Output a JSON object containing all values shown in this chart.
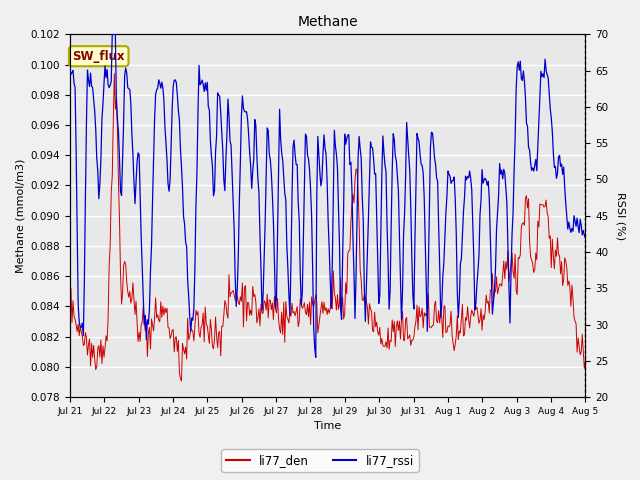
{
  "title": "Methane",
  "xlabel": "Time",
  "ylabel_left": "Methane (mmol/m3)",
  "ylabel_right": "RSSI (%)",
  "ylim_left": [
    0.078,
    0.102
  ],
  "ylim_right": [
    20,
    70
  ],
  "yticks_left": [
    0.078,
    0.08,
    0.082,
    0.084,
    0.086,
    0.088,
    0.09,
    0.092,
    0.094,
    0.096,
    0.098,
    0.1,
    0.102
  ],
  "yticks_right": [
    20,
    25,
    30,
    35,
    40,
    45,
    50,
    55,
    60,
    65,
    70
  ],
  "color_red": "#cc0000",
  "color_blue": "#0000cc",
  "annotation_text": "SW_flux",
  "annotation_facecolor": "#ffffcc",
  "annotation_edgecolor": "#aaaa00",
  "axes_facecolor": "#e8e8e8",
  "fig_facecolor": "#f0f0f0",
  "rssi_control": [
    [
      0.0,
      65
    ],
    [
      0.15,
      63
    ],
    [
      0.25,
      30
    ],
    [
      0.4,
      30
    ],
    [
      0.5,
      65
    ],
    [
      0.7,
      62
    ],
    [
      0.85,
      47
    ],
    [
      1.0,
      65
    ],
    [
      1.1,
      65
    ],
    [
      1.2,
      62
    ],
    [
      1.3,
      99
    ],
    [
      1.35,
      62
    ],
    [
      1.5,
      47
    ],
    [
      1.6,
      65
    ],
    [
      1.75,
      62
    ],
    [
      1.9,
      47
    ],
    [
      2.0,
      55
    ],
    [
      2.15,
      30
    ],
    [
      2.3,
      30
    ],
    [
      2.5,
      63
    ],
    [
      2.7,
      63
    ],
    [
      2.9,
      47
    ],
    [
      3.0,
      64
    ],
    [
      3.1,
      64
    ],
    [
      3.3,
      47
    ],
    [
      3.5,
      30
    ],
    [
      3.6,
      30
    ],
    [
      3.75,
      64
    ],
    [
      4.0,
      63
    ],
    [
      4.2,
      47
    ],
    [
      4.3,
      62
    ],
    [
      4.4,
      60
    ],
    [
      4.5,
      47
    ],
    [
      4.6,
      61
    ],
    [
      4.75,
      48
    ],
    [
      4.85,
      30
    ],
    [
      5.0,
      60
    ],
    [
      5.15,
      60
    ],
    [
      5.3,
      48
    ],
    [
      5.4,
      58
    ],
    [
      5.5,
      48
    ],
    [
      5.6,
      30
    ],
    [
      5.75,
      58
    ],
    [
      5.9,
      48
    ],
    [
      6.0,
      30
    ],
    [
      6.1,
      59
    ],
    [
      6.25,
      48
    ],
    [
      6.4,
      30
    ],
    [
      6.5,
      57
    ],
    [
      6.65,
      48
    ],
    [
      6.75,
      30
    ],
    [
      6.85,
      57
    ],
    [
      7.0,
      50
    ],
    [
      7.1,
      30
    ],
    [
      7.15,
      23
    ],
    [
      7.2,
      58
    ],
    [
      7.3,
      48
    ],
    [
      7.4,
      57
    ],
    [
      7.5,
      48
    ],
    [
      7.6,
      30
    ],
    [
      7.7,
      57
    ],
    [
      7.8,
      50
    ],
    [
      7.9,
      30
    ],
    [
      8.0,
      56
    ],
    [
      8.1,
      56
    ],
    [
      8.2,
      50
    ],
    [
      8.3,
      30
    ],
    [
      8.4,
      57
    ],
    [
      8.5,
      50
    ],
    [
      8.6,
      30
    ],
    [
      8.75,
      56
    ],
    [
      8.9,
      50
    ],
    [
      9.0,
      30
    ],
    [
      9.1,
      56
    ],
    [
      9.2,
      50
    ],
    [
      9.3,
      30
    ],
    [
      9.4,
      56
    ],
    [
      9.55,
      50
    ],
    [
      9.65,
      30
    ],
    [
      9.8,
      57
    ],
    [
      9.9,
      50
    ],
    [
      10.0,
      30
    ],
    [
      10.1,
      57
    ],
    [
      10.3,
      50
    ],
    [
      10.4,
      30
    ],
    [
      10.5,
      57
    ],
    [
      10.7,
      50
    ],
    [
      10.8,
      30
    ],
    [
      11.0,
      51
    ],
    [
      11.2,
      49
    ],
    [
      11.3,
      30
    ],
    [
      11.5,
      51
    ],
    [
      11.7,
      49
    ],
    [
      11.8,
      30
    ],
    [
      12.0,
      51
    ],
    [
      12.2,
      49
    ],
    [
      12.3,
      30
    ],
    [
      12.5,
      51
    ],
    [
      12.7,
      49
    ],
    [
      12.8,
      30
    ],
    [
      13.0,
      65
    ],
    [
      13.2,
      65
    ],
    [
      13.4,
      52
    ],
    [
      13.6,
      52
    ],
    [
      13.7,
      65
    ],
    [
      13.9,
      65
    ],
    [
      14.1,
      52
    ],
    [
      14.3,
      52
    ],
    [
      14.5,
      44
    ],
    [
      15.0,
      43
    ]
  ],
  "den_control": [
    [
      0.0,
      0.0838
    ],
    [
      0.1,
      0.084
    ],
    [
      0.2,
      0.083
    ],
    [
      0.5,
      0.0815
    ],
    [
      0.7,
      0.081
    ],
    [
      1.0,
      0.0815
    ],
    [
      1.1,
      0.0825
    ],
    [
      1.3,
      0.099
    ],
    [
      1.35,
      0.0985
    ],
    [
      1.5,
      0.084
    ],
    [
      1.6,
      0.087
    ],
    [
      1.7,
      0.085
    ],
    [
      2.0,
      0.083
    ],
    [
      2.1,
      0.083
    ],
    [
      2.3,
      0.082
    ],
    [
      2.5,
      0.083
    ],
    [
      2.7,
      0.084
    ],
    [
      3.0,
      0.082
    ],
    [
      3.2,
      0.08
    ],
    [
      3.5,
      0.082
    ],
    [
      3.7,
      0.0825
    ],
    [
      4.0,
      0.083
    ],
    [
      4.2,
      0.082
    ],
    [
      4.5,
      0.083
    ],
    [
      4.7,
      0.085
    ],
    [
      5.0,
      0.0845
    ],
    [
      5.2,
      0.0845
    ],
    [
      5.5,
      0.0835
    ],
    [
      5.7,
      0.084
    ],
    [
      6.0,
      0.084
    ],
    [
      6.2,
      0.083
    ],
    [
      6.5,
      0.0835
    ],
    [
      6.7,
      0.084
    ],
    [
      7.0,
      0.084
    ],
    [
      7.2,
      0.0835
    ],
    [
      7.5,
      0.0845
    ],
    [
      7.7,
      0.0845
    ],
    [
      7.9,
      0.084
    ],
    [
      8.0,
      0.0835
    ],
    [
      8.3,
      0.093
    ],
    [
      8.35,
      0.0935
    ],
    [
      8.5,
      0.084
    ],
    [
      8.7,
      0.084
    ],
    [
      9.0,
      0.082
    ],
    [
      9.2,
      0.0815
    ],
    [
      9.5,
      0.0825
    ],
    [
      9.7,
      0.082
    ],
    [
      10.0,
      0.0825
    ],
    [
      10.2,
      0.0835
    ],
    [
      10.5,
      0.083
    ],
    [
      10.7,
      0.0835
    ],
    [
      11.0,
      0.0825
    ],
    [
      11.2,
      0.082
    ],
    [
      11.5,
      0.0825
    ],
    [
      11.7,
      0.083
    ],
    [
      12.0,
      0.083
    ],
    [
      12.2,
      0.0845
    ],
    [
      12.5,
      0.085
    ],
    [
      12.7,
      0.087
    ],
    [
      13.0,
      0.086
    ],
    [
      13.2,
      0.09
    ],
    [
      13.3,
      0.091
    ],
    [
      13.5,
      0.086
    ],
    [
      13.7,
      0.0905
    ],
    [
      13.9,
      0.09
    ],
    [
      14.0,
      0.087
    ],
    [
      14.2,
      0.088
    ],
    [
      14.5,
      0.086
    ],
    [
      14.7,
      0.083
    ],
    [
      15.0,
      0.08
    ]
  ],
  "n_points": 500,
  "x_start": 0,
  "x_end": 15.0,
  "xtick_labels": [
    "Jul 21",
    "Jul 22",
    "Jul 23",
    "Jul 24",
    "Jul 25",
    "Jul 26",
    "Jul 27",
    "Jul 28",
    "Jul 29",
    "Jul 30",
    "Jul 31",
    "Aug 1",
    "Aug 2",
    "Aug 3",
    "Aug 4",
    "Aug 5"
  ],
  "xtick_positions": [
    0,
    1,
    2,
    3,
    4,
    5,
    6,
    7,
    8,
    9,
    10,
    11,
    12,
    13,
    14,
    15
  ]
}
